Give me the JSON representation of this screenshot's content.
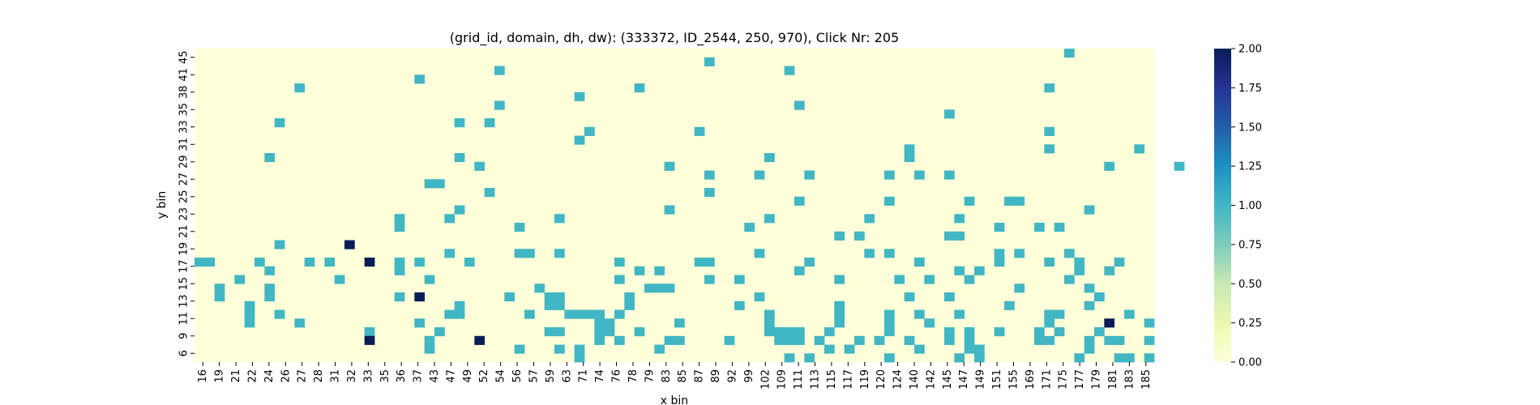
{
  "chart_data": {
    "type": "heatmap",
    "title": "(grid_id, domain, dh, dw): (333372, ID_2544, 250, 970), Click Nr: 205",
    "xlabel": "x bin",
    "ylabel": "y bin",
    "x_tick_labels": [
      "16",
      "19",
      "21",
      "22",
      "24",
      "26",
      "27",
      "28",
      "31",
      "32",
      "33",
      "35",
      "36",
      "37",
      "43",
      "47",
      "49",
      "52",
      "54",
      "56",
      "57",
      "59",
      "63",
      "71",
      "74",
      "76",
      "78",
      "79",
      "83",
      "85",
      "87",
      "89",
      "92",
      "99",
      "102",
      "109",
      "111",
      "113",
      "115",
      "117",
      "119",
      "120",
      "124",
      "140",
      "142",
      "145",
      "147",
      "149",
      "151",
      "155",
      "169",
      "171",
      "175",
      "177",
      "179",
      "181",
      "183",
      "185"
    ],
    "y_tick_labels": [
      "6",
      "9",
      "11",
      "13",
      "15",
      "17",
      "19",
      "21",
      "23",
      "25",
      "27",
      "29",
      "31",
      "33",
      "35",
      "38",
      "41",
      "45"
    ],
    "n_cols": 96,
    "n_rows": 36,
    "colorbar": {
      "min": 0,
      "max": 2,
      "ticks": [
        "0.00",
        "0.25",
        "0.50",
        "0.75",
        "1.00",
        "1.25",
        "1.50",
        "1.75",
        "2.00"
      ],
      "colormap": "YlGnBu"
    },
    "cells": [
      [
        87,
        35,
        1
      ],
      [
        51,
        34,
        1
      ],
      [
        30,
        33,
        1
      ],
      [
        59,
        33,
        1
      ],
      [
        22,
        32,
        1
      ],
      [
        10,
        31,
        1
      ],
      [
        44,
        31,
        1
      ],
      [
        85,
        31,
        1
      ],
      [
        38,
        30,
        1
      ],
      [
        30,
        29,
        1
      ],
      [
        60,
        29,
        1
      ],
      [
        75,
        28,
        1
      ],
      [
        8,
        27,
        1
      ],
      [
        26,
        27,
        1
      ],
      [
        29,
        27,
        1
      ],
      [
        39,
        26,
        1
      ],
      [
        50,
        26,
        1
      ],
      [
        85,
        26,
        1
      ],
      [
        38,
        25,
        1
      ],
      [
        71,
        24,
        1
      ],
      [
        85,
        24,
        1
      ],
      [
        94,
        24,
        1
      ],
      [
        7,
        23,
        1
      ],
      [
        26,
        23,
        1
      ],
      [
        57,
        23,
        1
      ],
      [
        71,
        23,
        1
      ],
      [
        28,
        22,
        1
      ],
      [
        47,
        22,
        1
      ],
      [
        91,
        22,
        1
      ],
      [
        98,
        22,
        1
      ],
      [
        51,
        21,
        1
      ],
      [
        56,
        21,
        1
      ],
      [
        61,
        21,
        1
      ],
      [
        69,
        21,
        1
      ],
      [
        72,
        21,
        1
      ],
      [
        75,
        21,
        1
      ],
      [
        23,
        20,
        1
      ],
      [
        24,
        20,
        1
      ],
      [
        29,
        19,
        1
      ],
      [
        51,
        19,
        1
      ],
      [
        60,
        18,
        1
      ],
      [
        69,
        18,
        1
      ],
      [
        77,
        18,
        1
      ],
      [
        81,
        18,
        1
      ],
      [
        82,
        18,
        1
      ],
      [
        26,
        17,
        1
      ],
      [
        47,
        17,
        1
      ],
      [
        89,
        17,
        1
      ],
      [
        20,
        16,
        1
      ],
      [
        25,
        16,
        1
      ],
      [
        36,
        16,
        1
      ],
      [
        57,
        16,
        1
      ],
      [
        67,
        16,
        1
      ],
      [
        76,
        16,
        1
      ],
      [
        20,
        15,
        1
      ],
      [
        32,
        15,
        1
      ],
      [
        55,
        15,
        1
      ],
      [
        80,
        15,
        1
      ],
      [
        84,
        15,
        1
      ],
      [
        86,
        15,
        1
      ],
      [
        64,
        14,
        1
      ],
      [
        66,
        14,
        1
      ],
      [
        76,
        14,
        1
      ],
      [
        75,
        14,
        1
      ],
      [
        8,
        13,
        1
      ],
      [
        15,
        13,
        2
      ],
      [
        25,
        12,
        1
      ],
      [
        32,
        12,
        1
      ],
      [
        33,
        12,
        1
      ],
      [
        36,
        12,
        1
      ],
      [
        56,
        12,
        1
      ],
      [
        67,
        12,
        1
      ],
      [
        69,
        12,
        1
      ],
      [
        80,
        12,
        1
      ],
      [
        82,
        12,
        1
      ],
      [
        87,
        12,
        1
      ],
      [
        0,
        11,
        1
      ],
      [
        1,
        11,
        1
      ],
      [
        6,
        11,
        1
      ],
      [
        11,
        11,
        1
      ],
      [
        13,
        11,
        1
      ],
      [
        17,
        11,
        2
      ],
      [
        20,
        11,
        1
      ],
      [
        22,
        11,
        1
      ],
      [
        27,
        11,
        1
      ],
      [
        42,
        11,
        1
      ],
      [
        50,
        11,
        1
      ],
      [
        51,
        11,
        1
      ],
      [
        61,
        11,
        1
      ],
      [
        72,
        11,
        1
      ],
      [
        80,
        11,
        1
      ],
      [
        85,
        11,
        1
      ],
      [
        88,
        11,
        1
      ],
      [
        92,
        11,
        1
      ],
      [
        7,
        10,
        1
      ],
      [
        20,
        10,
        1
      ],
      [
        44,
        10,
        1
      ],
      [
        46,
        10,
        1
      ],
      [
        60,
        10,
        1
      ],
      [
        76,
        10,
        1
      ],
      [
        78,
        10,
        1
      ],
      [
        88,
        10,
        1
      ],
      [
        91,
        10,
        1
      ],
      [
        4,
        9,
        1
      ],
      [
        14,
        9,
        1
      ],
      [
        23,
        9,
        1
      ],
      [
        42,
        9,
        1
      ],
      [
        51,
        9,
        1
      ],
      [
        54,
        9,
        1
      ],
      [
        64,
        9,
        1
      ],
      [
        70,
        9,
        1
      ],
      [
        73,
        9,
        1
      ],
      [
        77,
        9,
        1
      ],
      [
        87,
        9,
        1
      ],
      [
        2,
        8,
        1
      ],
      [
        7,
        8,
        1
      ],
      [
        34,
        8,
        1
      ],
      [
        45,
        8,
        1
      ],
      [
        46,
        8,
        1
      ],
      [
        47,
        8,
        1
      ],
      [
        82,
        8,
        1
      ],
      [
        89,
        8,
        1
      ],
      [
        2,
        7,
        1
      ],
      [
        7,
        7,
        1
      ],
      [
        20,
        7,
        1
      ],
      [
        22,
        7,
        2
      ],
      [
        31,
        7,
        1
      ],
      [
        35,
        7,
        1
      ],
      [
        36,
        7,
        1
      ],
      [
        43,
        7,
        1
      ],
      [
        56,
        7,
        1
      ],
      [
        71,
        7,
        1
      ],
      [
        75,
        7,
        1
      ],
      [
        90,
        7,
        1
      ],
      [
        5,
        6,
        1
      ],
      [
        26,
        6,
        1
      ],
      [
        35,
        6,
        1
      ],
      [
        36,
        6,
        1
      ],
      [
        43,
        6,
        1
      ],
      [
        54,
        6,
        1
      ],
      [
        64,
        6,
        1
      ],
      [
        81,
        6,
        1
      ],
      [
        89,
        6,
        1
      ],
      [
        5,
        5,
        1
      ],
      [
        8,
        5,
        1
      ],
      [
        25,
        5,
        1
      ],
      [
        26,
        5,
        1
      ],
      [
        33,
        5,
        1
      ],
      [
        37,
        5,
        1
      ],
      [
        38,
        5,
        1
      ],
      [
        39,
        5,
        1
      ],
      [
        40,
        5,
        1
      ],
      [
        42,
        5,
        1
      ],
      [
        57,
        5,
        1
      ],
      [
        64,
        5,
        1
      ],
      [
        69,
        5,
        1
      ],
      [
        72,
        5,
        1
      ],
      [
        76,
        5,
        1
      ],
      [
        85,
        5,
        1
      ],
      [
        86,
        5,
        1
      ],
      [
        93,
        5,
        1
      ],
      [
        5,
        4,
        1
      ],
      [
        10,
        4,
        1
      ],
      [
        22,
        4,
        1
      ],
      [
        40,
        4,
        1
      ],
      [
        41,
        4,
        1
      ],
      [
        48,
        4,
        1
      ],
      [
        57,
        4,
        1
      ],
      [
        64,
        4,
        1
      ],
      [
        69,
        4,
        1
      ],
      [
        73,
        4,
        1
      ],
      [
        85,
        4,
        1
      ],
      [
        91,
        4,
        2
      ],
      [
        95,
        4,
        1
      ],
      [
        17,
        3,
        1
      ],
      [
        24,
        3,
        1
      ],
      [
        35,
        3,
        1
      ],
      [
        36,
        3,
        1
      ],
      [
        40,
        3,
        1
      ],
      [
        41,
        3,
        1
      ],
      [
        44,
        3,
        1
      ],
      [
        57,
        3,
        1
      ],
      [
        58,
        3,
        1
      ],
      [
        59,
        3,
        1
      ],
      [
        60,
        3,
        1
      ],
      [
        63,
        3,
        1
      ],
      [
        69,
        3,
        1
      ],
      [
        75,
        3,
        1
      ],
      [
        77,
        3,
        1
      ],
      [
        80,
        3,
        1
      ],
      [
        84,
        3,
        1
      ],
      [
        86,
        3,
        1
      ],
      [
        90,
        3,
        1
      ],
      [
        17,
        2,
        2
      ],
      [
        23,
        2,
        1
      ],
      [
        28,
        2,
        2
      ],
      [
        40,
        2,
        1
      ],
      [
        42,
        2,
        1
      ],
      [
        47,
        2,
        1
      ],
      [
        48,
        2,
        1
      ],
      [
        53,
        2,
        1
      ],
      [
        58,
        2,
        1
      ],
      [
        59,
        2,
        1
      ],
      [
        60,
        2,
        1
      ],
      [
        62,
        2,
        1
      ],
      [
        66,
        2,
        1
      ],
      [
        68,
        2,
        1
      ],
      [
        71,
        2,
        1
      ],
      [
        75,
        2,
        1
      ],
      [
        77,
        2,
        1
      ],
      [
        84,
        2,
        1
      ],
      [
        85,
        2,
        1
      ],
      [
        89,
        2,
        1
      ],
      [
        91,
        2,
        1
      ],
      [
        92,
        2,
        1
      ],
      [
        95,
        2,
        1
      ],
      [
        23,
        1,
        1
      ],
      [
        32,
        1,
        1
      ],
      [
        36,
        1,
        1
      ],
      [
        38,
        1,
        1
      ],
      [
        46,
        1,
        1
      ],
      [
        63,
        1,
        1
      ],
      [
        65,
        1,
        1
      ],
      [
        72,
        1,
        1
      ],
      [
        77,
        1,
        1
      ],
      [
        78,
        1,
        1
      ],
      [
        89,
        1,
        1
      ],
      [
        38,
        0,
        1
      ],
      [
        59,
        0,
        1
      ],
      [
        61,
        0,
        1
      ],
      [
        69,
        0,
        1
      ],
      [
        76,
        0,
        1
      ],
      [
        78,
        0,
        1
      ],
      [
        88,
        0,
        1
      ],
      [
        92,
        0,
        1
      ],
      [
        93,
        0,
        1
      ],
      [
        95,
        0,
        1
      ],
      [
        42,
        -1,
        1
      ],
      [
        40,
        -1,
        1
      ],
      [
        71,
        -1,
        1
      ],
      [
        76,
        -1,
        1
      ],
      [
        90,
        -1,
        1
      ],
      [
        94,
        -1,
        1
      ],
      [
        80,
        -1,
        1
      ],
      [
        88,
        -1,
        1
      ],
      [
        45,
        -2,
        1
      ],
      [
        47,
        -2,
        1
      ],
      [
        59,
        -2,
        1
      ],
      [
        70,
        -2,
        1
      ],
      [
        76,
        -2,
        1
      ],
      [
        79,
        -2,
        1
      ],
      [
        91,
        -2,
        1
      ],
      [
        93,
        -2,
        1
      ],
      [
        60,
        -3,
        1
      ],
      [
        66,
        -3,
        1
      ],
      [
        79,
        -3,
        1
      ],
      [
        86,
        -3,
        1
      ],
      [
        90,
        -3,
        1
      ],
      [
        44,
        -4,
        1
      ],
      [
        57,
        -4,
        1
      ],
      [
        77,
        -4,
        1
      ],
      [
        80,
        -4,
        1
      ],
      [
        89,
        -4,
        1
      ]
    ]
  }
}
